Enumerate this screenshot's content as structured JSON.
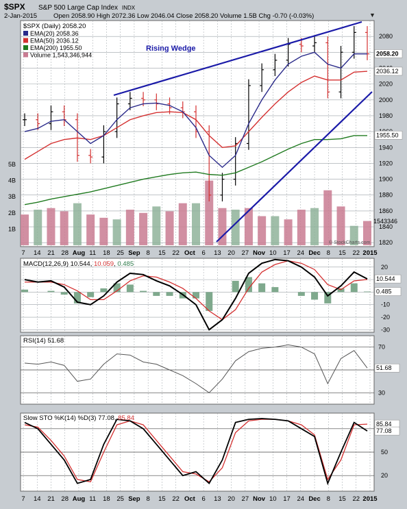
{
  "header": {
    "symbol": "$SPX",
    "name": "S&P 500 Large Cap Index",
    "exchange": "INDX",
    "date": "2-Jan-2015",
    "quote_line": "Open 2058.90  High 2072.36  Low 2046.04  Close 2058.20  Volume 1.5B  Chg -0.70 (-0.03%)",
    "down_marker": "▼",
    "watermark": "© StockCharts.com"
  },
  "colors": {
    "ema20": "#2a2a8a",
    "ema50": "#d43030",
    "ema200": "#1f7a1f",
    "volume": "#c97b92",
    "volume_alt": "#8fb39a",
    "wedge": "#1a1aa8",
    "grid": "#9aa0a6",
    "panel_bg": "#ffffff",
    "macd": "#000000",
    "signal": "#d43030",
    "histogram": "#7fa98d"
  },
  "x_axis": {
    "labels": [
      "7",
      "14",
      "21",
      "28",
      "Aug",
      "11",
      "18",
      "25",
      "Sep",
      "8",
      "15",
      "22",
      "Oct",
      "6",
      "13",
      "20",
      "27",
      "Nov",
      "10",
      "17",
      "24",
      "Dec",
      "8",
      "15",
      "22",
      "2015"
    ],
    "bold": [
      "Aug",
      "Sep",
      "Oct",
      "Nov",
      "Dec",
      "2015"
    ]
  },
  "price_panel": {
    "legend_title": "$SPX (Daily) 2058.20",
    "legend": [
      {
        "label": "EMA(20) 2058.36",
        "color_key": "ema20"
      },
      {
        "label": "EMA(50) 2036.12",
        "color_key": "ema50"
      },
      {
        "label": "EMA(200) 1955.50",
        "color_key": "ema200"
      },
      {
        "label": "Volume 1,543,346,944",
        "color_key": "volume"
      }
    ],
    "annotation": "Rising Wedge",
    "y_ticks": [
      "2080",
      "2060",
      "2040",
      "2020",
      "2000",
      "1980",
      "1960",
      "1940",
      "1920",
      "1900",
      "1880",
      "1860",
      "1840",
      "1820"
    ],
    "price_tags": [
      {
        "label": "2058.20",
        "value": 2058.2
      },
      {
        "label": "2036.12",
        "value": 2036.12
      },
      {
        "label": "1955.50",
        "value": 1955.5
      }
    ],
    "volume_ticks": [
      "5B",
      "4B",
      "3B",
      "2B",
      "1B"
    ],
    "volume_tag": "1543346"
  },
  "macd_panel": {
    "legend": "MACD(12,26,9)",
    "macd_value": "10.544",
    "signal_value": "10.059",
    "hist_value": "0.485",
    "y_ticks": [
      "20",
      "10",
      "0",
      "-10",
      "-20",
      "-30"
    ],
    "tags": [
      "10.544",
      "0.485"
    ]
  },
  "rsi_panel": {
    "legend": "RSI(14) 51.68",
    "y_ticks": [
      "70",
      "50",
      "30"
    ],
    "tag": "51.68"
  },
  "sto_panel": {
    "legend_prefix": "Slow STO %K(14) %D(3)",
    "k_value": "77.08",
    "d_value": "85.84",
    "y_ticks": [
      "80",
      "50",
      "20"
    ],
    "tags": [
      "85.84",
      "77.08"
    ]
  },
  "chart_data": [
    {
      "type": "line",
      "title": "$SPX S&P 500 Large Cap Index (Daily)",
      "x_dates": [
        "Jul 7",
        "Jul 14",
        "Jul 21",
        "Jul 28",
        "Aug 4",
        "Aug 11",
        "Aug 18",
        "Aug 25",
        "Sep 2",
        "Sep 8",
        "Sep 15",
        "Sep 22",
        "Sep 29",
        "Oct 6",
        "Oct 13",
        "Oct 20",
        "Oct 27",
        "Nov 3",
        "Nov 10",
        "Nov 17",
        "Nov 24",
        "Dec 1",
        "Dec 8",
        "Dec 15",
        "Dec 22",
        "Dec 29",
        "Jan 2"
      ],
      "ylim": [
        1815,
        2100
      ],
      "series": [
        {
          "name": "$SPX",
          "values": [
            1975,
            1970,
            1985,
            1975,
            1930,
            1928,
            1960,
            1995,
            2002,
            2000,
            1995,
            1990,
            1985,
            1960,
            1880,
            1900,
            1945,
            2018,
            2038,
            2050,
            2070,
            2068,
            2072,
            2010,
            2060,
            2085,
            2058
          ]
        },
        {
          "name": "EMA(20)",
          "values": [
            1960,
            1964,
            1973,
            1975,
            1960,
            1945,
            1955,
            1975,
            1990,
            1995,
            1996,
            1993,
            1985,
            1965,
            1930,
            1915,
            1930,
            1970,
            2000,
            2025,
            2045,
            2055,
            2060,
            2045,
            2040,
            2058,
            2058
          ]
        },
        {
          "name": "EMA(50)",
          "values": [
            1925,
            1935,
            1945,
            1950,
            1952,
            1950,
            1955,
            1965,
            1975,
            1980,
            1984,
            1985,
            1984,
            1975,
            1955,
            1940,
            1942,
            1960,
            1978,
            1995,
            2010,
            2022,
            2030,
            2025,
            2025,
            2035,
            2036
          ]
        },
        {
          "name": "EMA(200)",
          "values": [
            1868,
            1871,
            1875,
            1878,
            1881,
            1884,
            1888,
            1892,
            1896,
            1900,
            1903,
            1906,
            1908,
            1909,
            1906,
            1905,
            1908,
            1915,
            1922,
            1930,
            1938,
            1945,
            1950,
            1950,
            1951,
            1955,
            1955
          ]
        }
      ],
      "volume_billion": [
        1.9,
        2.2,
        2.3,
        2.1,
        2.6,
        1.9,
        1.7,
        1.6,
        2.2,
        2.0,
        2.4,
        2.1,
        2.6,
        2.6,
        4.0,
        2.3,
        2.2,
        2.3,
        1.8,
        1.8,
        1.6,
        2.2,
        2.3,
        3.4,
        2.4,
        1.2,
        1.5
      ],
      "annotations": [
        "Rising Wedge"
      ]
    },
    {
      "type": "line",
      "title": "MACD(12,26,9)",
      "ylim": [
        -32,
        27
      ],
      "series": [
        {
          "name": "MACD",
          "values": [
            10,
            8,
            9,
            4,
            -8,
            -10,
            -3,
            8,
            15,
            14,
            9,
            5,
            -2,
            -10,
            -30,
            -22,
            -5,
            15,
            23,
            26,
            25,
            20,
            12,
            -3,
            5,
            16,
            10.544
          ]
        },
        {
          "name": "Signal",
          "values": [
            8,
            8,
            8,
            6,
            1,
            -6,
            -6,
            1,
            9,
            13,
            12,
            8,
            3,
            -5,
            -15,
            -22,
            -14,
            3,
            16,
            22,
            25,
            23,
            18,
            6,
            2,
            9,
            10.059
          ]
        },
        {
          "name": "Histogram",
          "values": [
            2,
            0,
            1,
            -2,
            -9,
            -4,
            3,
            7,
            6,
            1,
            -3,
            -3,
            -5,
            -5,
            -15,
            0,
            9,
            12,
            7,
            4,
            0,
            -3,
            -6,
            -9,
            3,
            7,
            0.485
          ]
        }
      ]
    },
    {
      "type": "line",
      "title": "RSI(14)",
      "ylim": [
        20,
        80
      ],
      "series": [
        {
          "name": "RSI(14)",
          "values": [
            56,
            55,
            57,
            54,
            40,
            42,
            55,
            64,
            63,
            57,
            55,
            50,
            45,
            38,
            30,
            42,
            58,
            66,
            69,
            70,
            72,
            70,
            64,
            38,
            60,
            67,
            51.68
          ]
        }
      ]
    },
    {
      "type": "line",
      "title": "Slow STO %K(14) %D(3)",
      "ylim": [
        0,
        100
      ],
      "series": [
        {
          "name": "%K",
          "values": [
            88,
            80,
            60,
            40,
            10,
            15,
            60,
            92,
            90,
            80,
            60,
            40,
            20,
            25,
            10,
            40,
            88,
            92,
            93,
            92,
            90,
            80,
            70,
            10,
            50,
            88,
            77.08
          ]
        },
        {
          "name": "%D",
          "values": [
            85,
            82,
            65,
            45,
            15,
            12,
            50,
            85,
            90,
            85,
            65,
            45,
            25,
            22,
            12,
            30,
            75,
            90,
            92,
            92,
            90,
            85,
            72,
            15,
            40,
            85,
            85.84
          ]
        }
      ]
    }
  ]
}
